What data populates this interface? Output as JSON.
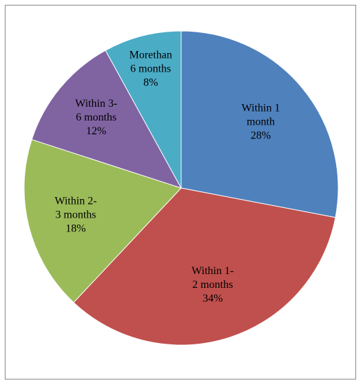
{
  "chart_data": {
    "type": "pie",
    "title": "",
    "start": "top",
    "direction": "clockwise",
    "slices": [
      {
        "label_lines": [
          "Within 1",
          "month"
        ],
        "value": 28,
        "value_label": "28%",
        "color": "#4F81BD"
      },
      {
        "label_lines": [
          "Within 1-",
          "2 months"
        ],
        "value": 34,
        "value_label": "34%",
        "color": "#C0504D"
      },
      {
        "label_lines": [
          "Within 2-",
          "3 months"
        ],
        "value": 18,
        "value_label": "18%",
        "color": "#9BBB59"
      },
      {
        "label_lines": [
          "Within 3-",
          "6 months"
        ],
        "value": 12,
        "value_label": "12%",
        "color": "#8064A2"
      },
      {
        "label_lines": [
          "Morethan",
          "6 months"
        ],
        "value": 8,
        "value_label": "8%",
        "color": "#4BACC6"
      }
    ],
    "legend": "none",
    "labels_inside": true
  }
}
